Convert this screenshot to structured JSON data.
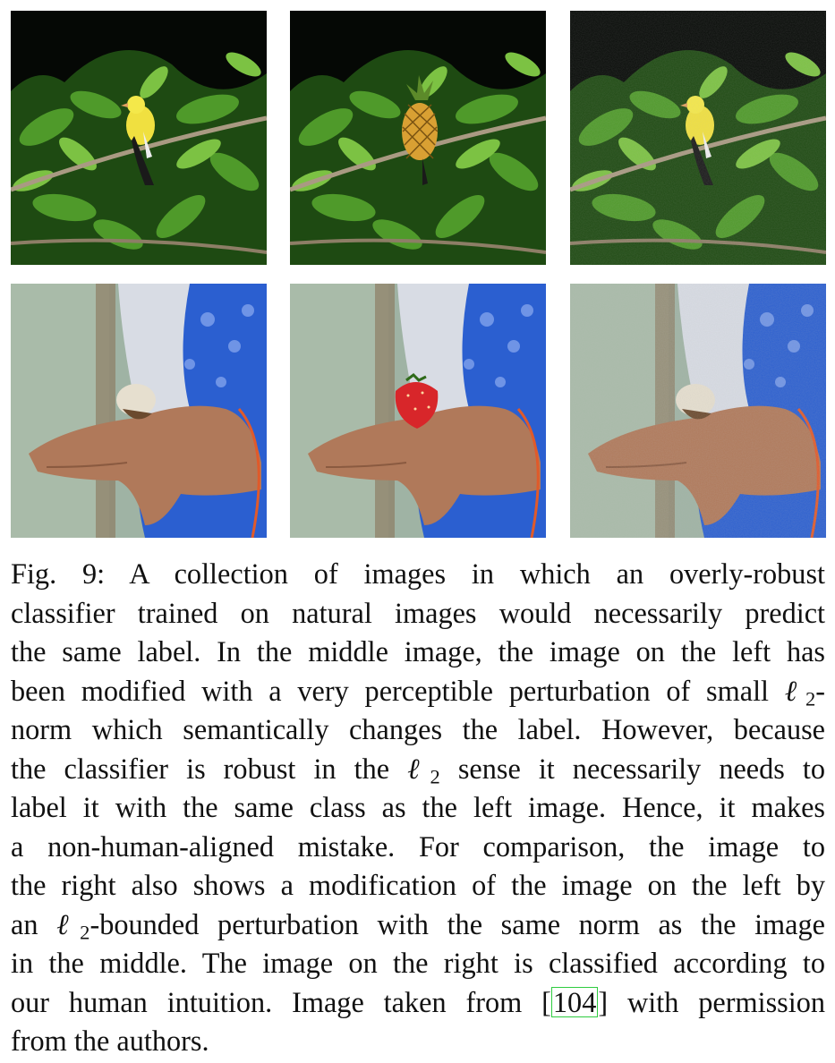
{
  "figure": {
    "panels": [
      {
        "row": 1,
        "col": 1,
        "subject": "bird-on-branch",
        "variant": "original"
      },
      {
        "row": 1,
        "col": 2,
        "subject": "pineapple-on-branch",
        "variant": "semantic-perturbation"
      },
      {
        "row": 1,
        "col": 3,
        "subject": "bird-on-branch",
        "variant": "noise-perturbation"
      },
      {
        "row": 2,
        "col": 1,
        "subject": "hermit-crab-in-hand",
        "variant": "original"
      },
      {
        "row": 2,
        "col": 2,
        "subject": "strawberry-in-hand",
        "variant": "semantic-perturbation"
      },
      {
        "row": 2,
        "col": 3,
        "subject": "hermit-crab-in-hand",
        "variant": "noise-perturbation"
      }
    ]
  },
  "caption": {
    "l1": "Fig. 9: A collection of images in which an overly-robust",
    "l2": "classifier trained on natural images would necessarily predict",
    "l3": "the same label. In the middle image, the image on the left has",
    "l4a": "been modified with a very perceptible perturbation of small ",
    "l4b": "ℓ",
    "l4c": "2",
    "l4d": "-",
    "l5": "norm which semantically changes the label. However, because",
    "l6a": "the classifier is robust in the ",
    "l6b": "ℓ",
    "l6c": "2",
    "l6d": " sense it necessarily needs to",
    "l7": "label it with the same class as the left image. Hence, it makes",
    "l8": "a non-human-aligned mistake. For comparison, the image to",
    "l9": "the right also shows a modification of the image on the left by",
    "l10a": "an ",
    "l10b": "ℓ",
    "l10c": "2",
    "l10d": "-bounded perturbation with the same norm as the image",
    "l11": "in the middle. The image on the right is classified according to",
    "l12a": "our human intuition. Image taken from [",
    "l12b": "104",
    "l12c": "] with permission",
    "l13": "from the authors."
  }
}
